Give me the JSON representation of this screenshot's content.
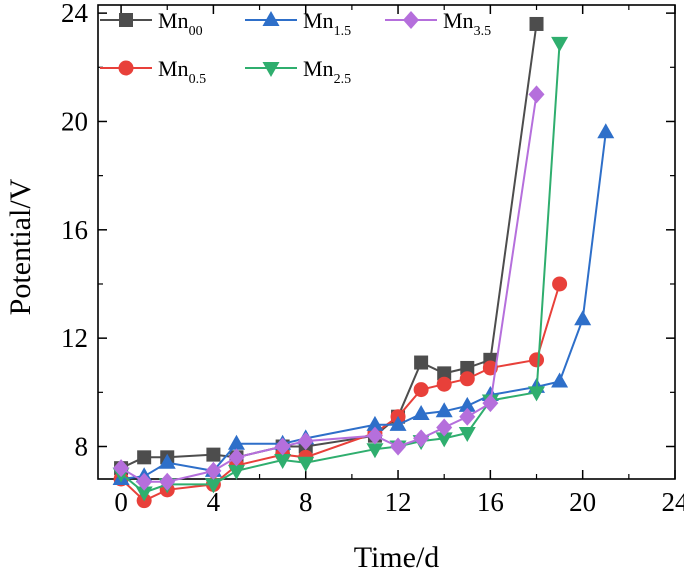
{
  "chart_data": {
    "type": "line",
    "xlabel": "Time/d",
    "ylabel": "Potential/V",
    "xlim": [
      -1,
      24
    ],
    "ylim": [
      6.8,
      24.3
    ],
    "xticks": [
      "0",
      "4",
      "8",
      "12",
      "16",
      "20",
      "24"
    ],
    "yticks": [
      "8",
      "12",
      "16",
      "20",
      "24"
    ],
    "grid": false,
    "legend_position": "top-left",
    "series": [
      {
        "name": "Mn",
        "sub": "00",
        "color": "#4d4d4d",
        "marker": "square",
        "x": [
          0,
          1,
          2,
          4,
          5,
          7,
          8,
          11,
          12,
          13,
          14,
          15,
          16,
          18
        ],
        "y": [
          7.2,
          7.6,
          7.6,
          7.7,
          7.6,
          8.0,
          8.0,
          8.4,
          9.1,
          11.1,
          10.7,
          10.9,
          11.2,
          23.6
        ]
      },
      {
        "name": "Mn",
        "sub": "0.5",
        "color": "#e8403a",
        "marker": "circle",
        "x": [
          0,
          1,
          2,
          4,
          5,
          7,
          8,
          11,
          12,
          13,
          14,
          15,
          16,
          18,
          19
        ],
        "y": [
          6.8,
          6.0,
          6.4,
          6.6,
          7.3,
          7.7,
          7.6,
          8.5,
          9.1,
          10.1,
          10.3,
          10.5,
          10.9,
          11.2,
          14.0
        ]
      },
      {
        "name": "Mn",
        "sub": "1.5",
        "color": "#2e6fc9",
        "marker": "triangle-up",
        "x": [
          0,
          1,
          2,
          4,
          5,
          7,
          8,
          11,
          12,
          13,
          14,
          15,
          16,
          18,
          19,
          20,
          21
        ],
        "y": [
          6.8,
          6.9,
          7.4,
          7.1,
          8.1,
          8.1,
          8.3,
          8.8,
          8.8,
          9.2,
          9.3,
          9.5,
          9.9,
          10.2,
          10.4,
          12.7,
          19.6
        ]
      },
      {
        "name": "Mn",
        "sub": "2.5",
        "color": "#2fae6e",
        "marker": "triangle-down",
        "x": [
          0,
          1,
          2,
          4,
          5,
          7,
          8,
          11,
          12,
          13,
          14,
          15,
          16,
          18,
          19
        ],
        "y": [
          7.0,
          6.3,
          6.6,
          6.6,
          7.1,
          7.5,
          7.4,
          7.9,
          8.0,
          8.2,
          8.3,
          8.5,
          9.7,
          10.0,
          22.9
        ]
      },
      {
        "name": "Mn",
        "sub": "3.5",
        "color": "#b56fdc",
        "marker": "diamond",
        "x": [
          0,
          1,
          2,
          4,
          5,
          7,
          8,
          11,
          12,
          13,
          14,
          15,
          16,
          18
        ],
        "y": [
          7.2,
          6.7,
          6.7,
          7.1,
          7.6,
          8.0,
          8.2,
          8.4,
          8.0,
          8.3,
          8.7,
          9.1,
          9.6,
          21.0
        ]
      }
    ]
  }
}
